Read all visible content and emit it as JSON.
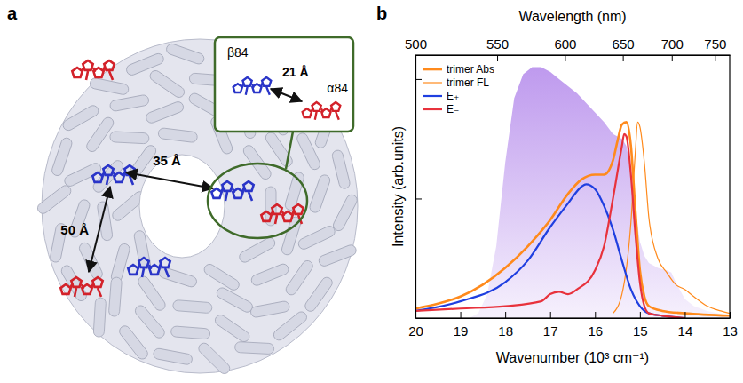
{
  "panel_a": {
    "panel_label": "a",
    "inset_labels": [
      "β84",
      "α84",
      "21 Å"
    ],
    "distances": [
      "35 Å",
      "50 Å"
    ]
  },
  "chart_data": {
    "type": "line",
    "panel_label": "b",
    "xlabel": "Wavenumber (10³ cm⁻¹)",
    "ylabel": "Intensity (arb.units)",
    "x2label": "Wavelength (nm)",
    "xlim": [
      20,
      13
    ],
    "xticks": [
      20,
      19,
      18,
      17,
      16,
      15,
      14,
      13
    ],
    "x2ticks": [
      {
        "value": 20,
        "label": "500"
      },
      {
        "value": 18.18,
        "label": "550"
      },
      {
        "value": 16.67,
        "label": "600"
      },
      {
        "value": 15.38,
        "label": "650"
      },
      {
        "value": 14.29,
        "label": "700"
      },
      {
        "value": 13.33,
        "label": "750"
      }
    ],
    "ylim": [
      0,
      1.1
    ],
    "yticks": [
      0.5,
      1.0
    ],
    "tick_labels": "x",
    "legend": "upper left",
    "series": [
      {
        "type": "area",
        "color": "#b388eb",
        "x": [
          18.8,
          18.6,
          18.4,
          18.2,
          18.0,
          17.8,
          17.6,
          17.4,
          17.2,
          17.0,
          16.8,
          16.6,
          16.4,
          16.2,
          16.0,
          15.8,
          15.6,
          15.4,
          15.3,
          15.2,
          15.1,
          15.0,
          14.9,
          14.8,
          14.6,
          14.4,
          14.3,
          14.2,
          14.0,
          13.8,
          13.5,
          13.0
        ],
        "values": [
          0,
          0.02,
          0.1,
          0.3,
          0.65,
          0.92,
          1.02,
          1.05,
          1.05,
          1.03,
          1.0,
          0.97,
          0.94,
          0.9,
          0.86,
          0.82,
          0.77,
          0.75,
          0.72,
          0.62,
          0.45,
          0.32,
          0.26,
          0.23,
          0.21,
          0.2,
          0.19,
          0.15,
          0.08,
          0.05,
          0.03,
          0.01
        ]
      },
      {
        "name": "trimer Abs",
        "type": "line",
        "color": "#ff8a1c",
        "x": [
          20,
          19.5,
          19,
          18.5,
          18,
          17.5,
          17,
          16.6,
          16.3,
          16.0,
          15.8,
          15.6,
          15.5,
          15.4,
          15.3,
          15.2,
          15.1,
          15.0,
          14.9,
          14.8,
          14.5,
          14.0,
          13.0
        ],
        "values": [
          0.04,
          0.06,
          0.09,
          0.14,
          0.21,
          0.3,
          0.41,
          0.52,
          0.58,
          0.6,
          0.6,
          0.66,
          0.74,
          0.81,
          0.82,
          0.72,
          0.45,
          0.2,
          0.09,
          0.05,
          0.03,
          0.02,
          0.01
        ]
      },
      {
        "name": "trimer FL",
        "type": "line",
        "color": "#ff8a1c",
        "x": [
          15.6,
          15.4,
          15.2,
          15.1,
          15.05,
          15.0,
          14.9,
          14.8,
          14.6,
          14.4,
          14.2,
          14.0,
          13.8,
          13.5,
          13.2,
          13.0
        ],
        "values": [
          0.02,
          0.1,
          0.4,
          0.7,
          0.82,
          0.8,
          0.65,
          0.42,
          0.25,
          0.19,
          0.14,
          0.12,
          0.09,
          0.05,
          0.03,
          0.02
        ]
      },
      {
        "name": "E₊",
        "type": "line",
        "color": "#1f3fe0",
        "x": [
          20,
          19,
          18,
          17.5,
          17,
          16.6,
          16.3,
          16.2,
          16.0,
          15.8,
          15.6,
          15.4,
          15.2,
          15.0,
          14.8,
          14.5,
          14.0
        ],
        "values": [
          0.03,
          0.07,
          0.15,
          0.24,
          0.38,
          0.48,
          0.55,
          0.56,
          0.54,
          0.47,
          0.37,
          0.24,
          0.12,
          0.05,
          0.02,
          0.01,
          0
        ]
      },
      {
        "name": "E₋",
        "type": "line",
        "color": "#e8323c",
        "x": [
          20,
          19,
          18,
          17.2,
          17.0,
          16.8,
          16.6,
          16.4,
          16.0,
          15.8,
          15.6,
          15.4,
          15.35,
          15.3,
          15.2,
          15.1,
          15.0,
          14.9,
          14.8,
          14.5,
          14.0
        ],
        "values": [
          0.03,
          0.04,
          0.05,
          0.07,
          0.1,
          0.11,
          0.1,
          0.12,
          0.2,
          0.3,
          0.5,
          0.72,
          0.77,
          0.76,
          0.6,
          0.35,
          0.15,
          0.05,
          0.02,
          0.01,
          0
        ]
      }
    ]
  }
}
